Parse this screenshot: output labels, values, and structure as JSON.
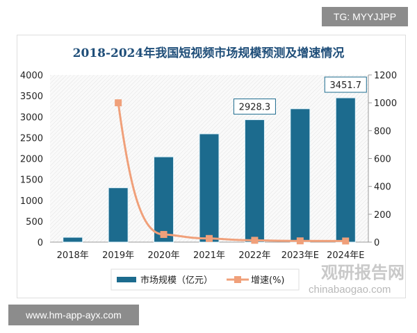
{
  "watermark_top": "TG: MYYJJPP",
  "watermark_bottom": "www.hm-app-ayx.com",
  "logo_cn": "观研报告网",
  "logo_en": "chinabaogao.com",
  "chart_data": {
    "type": "bar+line",
    "title": "2018-2024年我国短视频市场规模预测及增速情况",
    "categories": [
      "2018年",
      "2019年",
      "2020年",
      "2021年",
      "2022年",
      "2023年E",
      "2024年E"
    ],
    "series": [
      {
        "name": "市场规模（亿元）",
        "type": "bar",
        "axis": "left",
        "color": "#1c6b8e",
        "values": [
          115,
          1300,
          2040,
          2590,
          2928.3,
          3190,
          3451.7
        ]
      },
      {
        "name": "增速(%)",
        "type": "line",
        "axis": "right",
        "color": "#f0a07a",
        "values": [
          null,
          1000,
          55,
          26,
          13,
          9,
          8
        ]
      }
    ],
    "data_labels": [
      {
        "index": 4,
        "text": "2928.3"
      },
      {
        "index": 6,
        "text": "3451.7"
      }
    ],
    "left_axis": {
      "range": [
        0,
        4000
      ],
      "ticks": [
        "0",
        "500",
        "1000",
        "1500",
        "2000",
        "2500",
        "3000",
        "3500",
        "4000"
      ]
    },
    "right_axis": {
      "range": [
        0,
        1200
      ],
      "ticks": [
        "0",
        "200",
        "400",
        "600",
        "800",
        "1000",
        "1200"
      ]
    },
    "legend_placement": "bottom",
    "grid": false
  }
}
